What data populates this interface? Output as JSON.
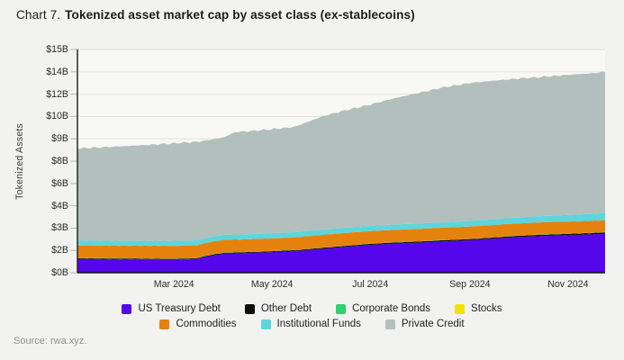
{
  "header": {
    "prefix": "Chart 7.",
    "title": "Tokenized asset market cap by asset class (ex-stablecoins)"
  },
  "footer": {
    "source": "Source: rwa.xyz."
  },
  "colors": {
    "page_background": "#f2f2f1",
    "plot_background": "#f8f8f7",
    "gridline": "#e3e2e0",
    "axis_line": "#1a1a1a"
  },
  "chart_data": {
    "type": "area",
    "stacked": true,
    "title": "Tokenized asset market cap by asset class (ex-stablecoins)",
    "xlabel": "",
    "ylabel": "Tokenized Assets",
    "units": "billions USD",
    "ylim": [
      0,
      15
    ],
    "grid": "horizontal",
    "legend_position": "bottom",
    "x_unit": "days since 2024-01-01",
    "x_days": [
      0,
      14,
      31,
      45,
      60,
      74,
      81,
      91,
      98,
      105,
      121,
      135,
      152,
      166,
      182,
      196,
      213,
      227,
      244,
      258,
      274,
      288,
      305,
      319,
      328
    ],
    "x_dates": [
      "2024-01-01",
      "2024-01-15",
      "2024-02-01",
      "2024-02-15",
      "2024-03-01",
      "2024-03-15",
      "2024-03-22",
      "2024-04-01",
      "2024-04-08",
      "2024-04-15",
      "2024-05-01",
      "2024-05-15",
      "2024-06-01",
      "2024-06-15",
      "2024-07-01",
      "2024-07-15",
      "2024-08-01",
      "2024-08-15",
      "2024-09-01",
      "2024-09-15",
      "2024-10-01",
      "2024-10-15",
      "2024-11-01",
      "2024-11-15",
      "2024-11-24"
    ],
    "y_ticks": [
      {
        "value": 0,
        "label": "$0B"
      },
      {
        "value": 1.5,
        "label": "$2B"
      },
      {
        "value": 3,
        "label": "$3B"
      },
      {
        "value": 4.5,
        "label": "$4B"
      },
      {
        "value": 6,
        "label": "$6B"
      },
      {
        "value": 7.5,
        "label": "$8B"
      },
      {
        "value": 9,
        "label": "$9B"
      },
      {
        "value": 10.5,
        "label": "$10B"
      },
      {
        "value": 12,
        "label": "$12B"
      },
      {
        "value": 13.5,
        "label": "$14B"
      },
      {
        "value": 15,
        "label": "$15B"
      }
    ],
    "x_ticks": [
      {
        "day": 60,
        "label": "Mar 2024"
      },
      {
        "day": 121,
        "label": "May 2024"
      },
      {
        "day": 182,
        "label": "Jul 2024"
      },
      {
        "day": 244,
        "label": "Sep 2024"
      },
      {
        "day": 305,
        "label": "Nov 2024"
      }
    ],
    "series": [
      {
        "id": "us-treasury-debt",
        "name": "US Treasury Debt",
        "color": "#5506eb",
        "legend_row": 1,
        "values": [
          0.92,
          0.91,
          0.9,
          0.89,
          0.88,
          0.92,
          1.1,
          1.28,
          1.3,
          1.32,
          1.38,
          1.45,
          1.6,
          1.73,
          1.87,
          1.95,
          2.02,
          2.1,
          2.18,
          2.28,
          2.4,
          2.46,
          2.52,
          2.57,
          2.62
        ]
      },
      {
        "id": "other-debt",
        "name": "Other Debt",
        "color": "#0d0d0d",
        "legend_row": 1,
        "values": [
          0.05,
          0.05,
          0.05,
          0.05,
          0.05,
          0.05,
          0.06,
          0.06,
          0.06,
          0.06,
          0.06,
          0.06,
          0.07,
          0.07,
          0.07,
          0.07,
          0.08,
          0.08,
          0.08,
          0.08,
          0.08,
          0.09,
          0.09,
          0.09,
          0.09
        ]
      },
      {
        "id": "corporate-bonds",
        "name": "Corporate Bonds",
        "color": "#2fd06e",
        "legend_row": 1,
        "values": [
          0.012,
          0.012,
          0.012,
          0.012,
          0.012,
          0.012,
          0.012,
          0.012,
          0.012,
          0.012,
          0.012,
          0.012,
          0.012,
          0.012,
          0.012,
          0.012,
          0.012,
          0.012,
          0.012,
          0.012,
          0.012,
          0.012,
          0.012,
          0.012,
          0.012
        ]
      },
      {
        "id": "stocks",
        "name": "Stocks",
        "color": "#efe40a",
        "legend_row": 1,
        "values": [
          0.006,
          0.006,
          0.006,
          0.006,
          0.006,
          0.006,
          0.006,
          0.006,
          0.006,
          0.006,
          0.006,
          0.006,
          0.006,
          0.006,
          0.006,
          0.006,
          0.006,
          0.006,
          0.006,
          0.006,
          0.006,
          0.006,
          0.006,
          0.006,
          0.006
        ]
      },
      {
        "id": "commodities",
        "name": "Commodities",
        "color": "#e5820d",
        "legend_row": 2,
        "values": [
          0.84,
          0.84,
          0.84,
          0.85,
          0.85,
          0.85,
          0.85,
          0.85,
          0.85,
          0.85,
          0.85,
          0.85,
          0.86,
          0.85,
          0.84,
          0.84,
          0.83,
          0.83,
          0.83,
          0.83,
          0.82,
          0.82,
          0.81,
          0.8,
          0.8
        ]
      },
      {
        "id": "institutional-funds",
        "name": "Institutional Funds",
        "color": "#5cd6db",
        "legend_row": 2,
        "values": [
          0.33,
          0.33,
          0.33,
          0.33,
          0.34,
          0.34,
          0.34,
          0.34,
          0.34,
          0.34,
          0.35,
          0.35,
          0.35,
          0.35,
          0.35,
          0.36,
          0.36,
          0.37,
          0.37,
          0.38,
          0.4,
          0.42,
          0.44,
          0.47,
          0.5
        ]
      },
      {
        "id": "private-credit",
        "name": "Private Credit",
        "color": "#b3bfbc",
        "legend_row": 2,
        "values": [
          6.19,
          6.27,
          6.38,
          6.46,
          6.56,
          6.62,
          6.53,
          6.55,
          6.88,
          6.91,
          6.99,
          7.07,
          7.6,
          7.88,
          8.15,
          8.46,
          8.79,
          9.05,
          9.27,
          9.31,
          9.33,
          9.34,
          9.42,
          9.45,
          9.47
        ]
      }
    ]
  }
}
